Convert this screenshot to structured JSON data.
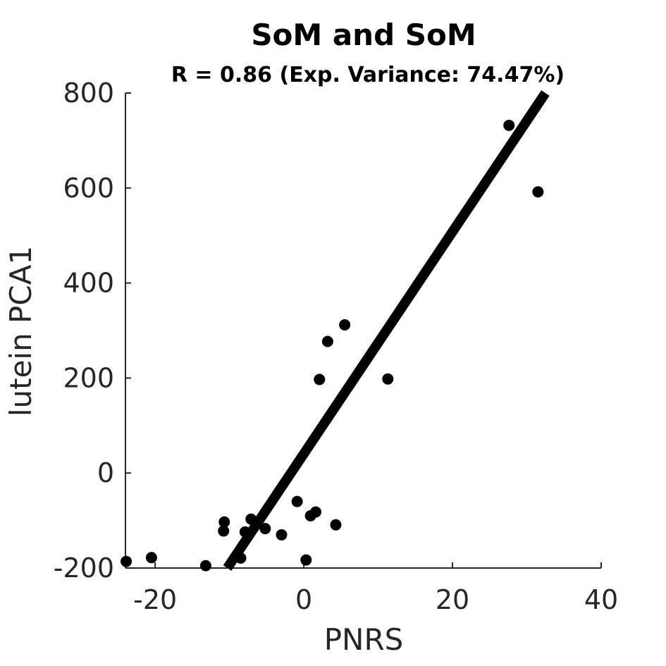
{
  "chart_data": {
    "type": "scatter",
    "title": "SoM and SoM",
    "subtitle": "R = 0.86 (Exp. Variance: 74.47%)",
    "xlabel": "PNRS",
    "ylabel": "lutein PCA1",
    "xlim": [
      -24,
      40
    ],
    "ylim": [
      -200,
      800
    ],
    "xticks": [
      -20,
      0,
      20,
      40
    ],
    "yticks": [
      -200,
      0,
      200,
      400,
      600,
      800
    ],
    "xtick_labels": [
      "-20",
      "0",
      "20",
      "40"
    ],
    "ytick_labels": [
      "-200",
      "0",
      "200",
      "400",
      "600",
      "800"
    ],
    "grid": false,
    "point_color": "#000000",
    "fit_line_color": "#000000",
    "points": [
      {
        "x": 27.6,
        "y": 732
      },
      {
        "x": 31.5,
        "y": 592
      },
      {
        "x": 5.5,
        "y": 312
      },
      {
        "x": 3.2,
        "y": 277
      },
      {
        "x": 2.1,
        "y": 197
      },
      {
        "x": 11.3,
        "y": 198
      },
      {
        "x": -0.9,
        "y": -60
      },
      {
        "x": 1.6,
        "y": -82
      },
      {
        "x": 0.9,
        "y": -90
      },
      {
        "x": 4.3,
        "y": -109
      },
      {
        "x": -7.1,
        "y": -97
      },
      {
        "x": -10.7,
        "y": -103
      },
      {
        "x": -10.8,
        "y": -122
      },
      {
        "x": -7.9,
        "y": -124
      },
      {
        "x": -5.2,
        "y": -117
      },
      {
        "x": -3.0,
        "y": -130
      },
      {
        "x": -8.5,
        "y": -179
      },
      {
        "x": 0.3,
        "y": -183
      },
      {
        "x": -20.5,
        "y": -178
      },
      {
        "x": -23.9,
        "y": -186
      },
      {
        "x": -13.2,
        "y": -195
      }
    ],
    "fit_line": {
      "x": [
        -10.3,
        32.5
      ],
      "y": [
        -200,
        800
      ]
    }
  }
}
